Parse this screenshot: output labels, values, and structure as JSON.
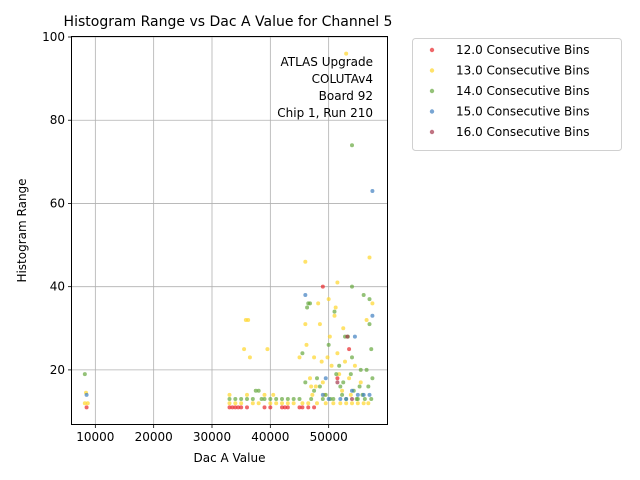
{
  "chart_data": {
    "type": "scatter",
    "title": "Histogram Range vs Dac A Value for Channel 5",
    "xlabel": "Dac A Value",
    "ylabel": "Histogram Range",
    "xlim": [
      6000,
      60000
    ],
    "ylim": [
      7,
      100
    ],
    "x_ticks": [
      10000,
      20000,
      30000,
      40000,
      50000
    ],
    "x_tick_labels": [
      "10000",
      "20000",
      "30000",
      "40000",
      "50000"
    ],
    "y_ticks": [
      20,
      40,
      60,
      80,
      100
    ],
    "y_tick_labels": [
      "20",
      "40",
      "60",
      "80",
      "100"
    ],
    "grid": true,
    "legend_position": "outside-right",
    "annotation": [
      "ATLAS Upgrade",
      "COLUTAv4",
      "Board 92",
      "Chip 1, Run 210"
    ],
    "series": [
      {
        "name": "12.0 Consecutive Bins",
        "color": "#e8262a",
        "points": [
          [
            8500,
            11
          ],
          [
            33000,
            11
          ],
          [
            33500,
            11
          ],
          [
            34000,
            11
          ],
          [
            34500,
            11
          ],
          [
            35000,
            11
          ],
          [
            36000,
            11
          ],
          [
            39000,
            11
          ],
          [
            40000,
            11
          ],
          [
            42000,
            11
          ],
          [
            42500,
            11
          ],
          [
            43000,
            11
          ],
          [
            45000,
            11
          ],
          [
            45500,
            11
          ],
          [
            46500,
            11
          ],
          [
            47500,
            11
          ],
          [
            49000,
            40
          ],
          [
            51500,
            18
          ],
          [
            53500,
            25
          ]
        ]
      },
      {
        "name": "13.0 Consecutive Bins",
        "color": "#ffd52a",
        "points": [
          [
            8200,
            12
          ],
          [
            8400,
            14.5
          ],
          [
            8700,
            12
          ],
          [
            33000,
            12
          ],
          [
            33000,
            14
          ],
          [
            34000,
            12
          ],
          [
            35000,
            12
          ],
          [
            35500,
            25
          ],
          [
            35800,
            32
          ],
          [
            36200,
            32
          ],
          [
            36500,
            23
          ],
          [
            36000,
            14
          ],
          [
            37000,
            12
          ],
          [
            38000,
            12
          ],
          [
            39000,
            14
          ],
          [
            39500,
            25
          ],
          [
            40000,
            12
          ],
          [
            40500,
            14
          ],
          [
            41000,
            12
          ],
          [
            42000,
            12
          ],
          [
            43000,
            12
          ],
          [
            44000,
            12
          ],
          [
            45000,
            23
          ],
          [
            45500,
            12
          ],
          [
            46000,
            46
          ],
          [
            46000,
            31
          ],
          [
            46200,
            26
          ],
          [
            46500,
            12
          ],
          [
            46800,
            18
          ],
          [
            47000,
            16
          ],
          [
            47200,
            14
          ],
          [
            47500,
            23
          ],
          [
            47800,
            16
          ],
          [
            48000,
            12
          ],
          [
            48200,
            36
          ],
          [
            48500,
            31
          ],
          [
            48800,
            22
          ],
          [
            49000,
            17
          ],
          [
            49300,
            14
          ],
          [
            49500,
            12
          ],
          [
            49800,
            23
          ],
          [
            50000,
            37
          ],
          [
            50200,
            28
          ],
          [
            50500,
            21
          ],
          [
            50800,
            12
          ],
          [
            51000,
            33
          ],
          [
            51200,
            35
          ],
          [
            51500,
            41
          ],
          [
            51500,
            24
          ],
          [
            51800,
            19
          ],
          [
            52000,
            12
          ],
          [
            52300,
            15
          ],
          [
            52500,
            30
          ],
          [
            52800,
            22
          ],
          [
            53000,
            96
          ],
          [
            53000,
            12
          ],
          [
            53500,
            18
          ],
          [
            53800,
            14
          ],
          [
            54000,
            12
          ],
          [
            54500,
            21
          ],
          [
            55000,
            12
          ],
          [
            55500,
            17
          ],
          [
            56000,
            12
          ],
          [
            56500,
            32
          ],
          [
            57000,
            47
          ],
          [
            57500,
            36
          ],
          [
            56800,
            12
          ]
        ]
      },
      {
        "name": "14.0 Consecutive Bins",
        "color": "#67a83e",
        "points": [
          [
            8200,
            19
          ],
          [
            33000,
            13
          ],
          [
            34000,
            13
          ],
          [
            35000,
            13
          ],
          [
            36000,
            13
          ],
          [
            37000,
            13
          ],
          [
            37500,
            15
          ],
          [
            38000,
            15
          ],
          [
            38500,
            13
          ],
          [
            39000,
            13
          ],
          [
            40000,
            13
          ],
          [
            41000,
            13
          ],
          [
            42000,
            13
          ],
          [
            43000,
            13
          ],
          [
            44000,
            13
          ],
          [
            45000,
            13
          ],
          [
            45500,
            24
          ],
          [
            46000,
            17
          ],
          [
            46300,
            35
          ],
          [
            46500,
            36
          ],
          [
            46800,
            36
          ],
          [
            47000,
            13
          ],
          [
            47500,
            15
          ],
          [
            48000,
            18
          ],
          [
            48500,
            16
          ],
          [
            49000,
            13
          ],
          [
            49500,
            14
          ],
          [
            50000,
            26
          ],
          [
            50300,
            13
          ],
          [
            50800,
            13
          ],
          [
            51000,
            34
          ],
          [
            51300,
            19
          ],
          [
            51800,
            21
          ],
          [
            52000,
            16
          ],
          [
            52300,
            14
          ],
          [
            52500,
            17
          ],
          [
            52800,
            28
          ],
          [
            53000,
            13
          ],
          [
            53300,
            28
          ],
          [
            53800,
            19
          ],
          [
            54000,
            40
          ],
          [
            54000,
            23
          ],
          [
            54000,
            74
          ],
          [
            54300,
            15
          ],
          [
            54800,
            13
          ],
          [
            55000,
            13
          ],
          [
            55300,
            16
          ],
          [
            55500,
            20
          ],
          [
            55800,
            14
          ],
          [
            56000,
            38
          ],
          [
            56200,
            13
          ],
          [
            56500,
            20
          ],
          [
            56800,
            16
          ],
          [
            57000,
            37
          ],
          [
            57000,
            31
          ],
          [
            57300,
            25
          ],
          [
            57500,
            18
          ],
          [
            57300,
            13
          ]
        ]
      },
      {
        "name": "15.0 Consecutive Bins",
        "color": "#3f7fc0",
        "points": [
          [
            8500,
            14
          ],
          [
            46000,
            38
          ],
          [
            49000,
            14
          ],
          [
            49500,
            18
          ],
          [
            50000,
            13
          ],
          [
            52000,
            13
          ],
          [
            53000,
            13
          ],
          [
            54000,
            15
          ],
          [
            54500,
            28
          ],
          [
            55000,
            14
          ],
          [
            56000,
            14
          ],
          [
            57000,
            14
          ],
          [
            57500,
            33
          ],
          [
            57500,
            63
          ]
        ]
      },
      {
        "name": "16.0 Consecutive Bins",
        "color": "#a5374d",
        "points": [
          [
            51500,
            17
          ],
          [
            53200,
            28
          ],
          [
            54000,
            13
          ]
        ]
      }
    ]
  }
}
